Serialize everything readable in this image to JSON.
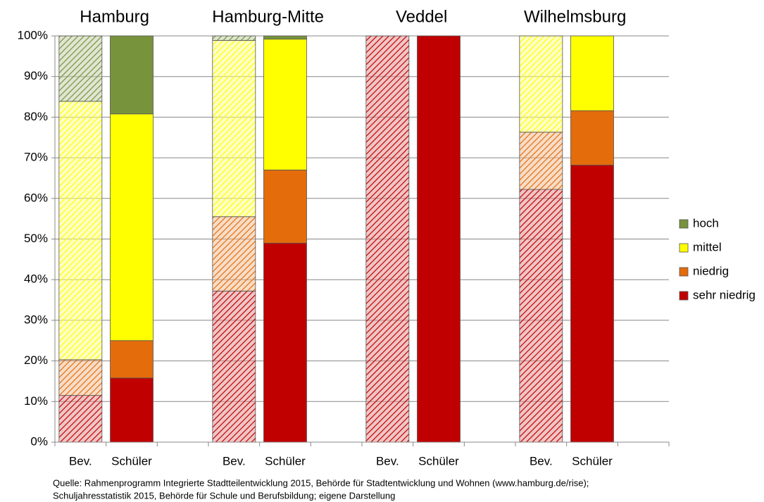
{
  "chart_data": {
    "type": "stacked-bar",
    "groups": [
      "Hamburg",
      "Hamburg-Mitte",
      "Veddel",
      "Wilhelmsburg"
    ],
    "categories": [
      "Bev.",
      "Schüler",
      "Bev.",
      "Schüler",
      "Bev.",
      "Schüler",
      "Bev.",
      "Schüler"
    ],
    "hatched": [
      true,
      false,
      true,
      false,
      true,
      false,
      true,
      false
    ],
    "series": [
      {
        "name": "sehr niedrig",
        "color": "#c00000",
        "values": [
          11.5,
          15.8,
          37.2,
          49.0,
          100,
          100,
          62.2,
          68.2
        ]
      },
      {
        "name": "niedrig",
        "color": "#e46c0a",
        "values": [
          8.8,
          9.2,
          18.3,
          18.0,
          0,
          0,
          14.1,
          13.4
        ]
      },
      {
        "name": "mittel",
        "color": "#ffff00",
        "values": [
          63.6,
          55.8,
          43.4,
          32.2,
          0,
          0,
          23.7,
          18.4
        ]
      },
      {
        "name": "hoch",
        "color": "#77933c",
        "values": [
          16.1,
          19.2,
          1.1,
          0.8,
          0,
          0,
          0,
          0
        ]
      }
    ],
    "ylim": [
      0,
      100
    ],
    "yticks": [
      {
        "value": 0,
        "label": "0%"
      },
      {
        "value": 10,
        "label": "10%"
      },
      {
        "value": 20,
        "label": "20%"
      },
      {
        "value": 30,
        "label": "30%"
      },
      {
        "value": 40,
        "label": "40%"
      },
      {
        "value": 50,
        "label": "50%"
      },
      {
        "value": 60,
        "label": "60%"
      },
      {
        "value": 70,
        "label": "70%"
      },
      {
        "value": 80,
        "label": "80%"
      },
      {
        "value": 90,
        "label": "90%"
      },
      {
        "value": 100,
        "label": "100%"
      }
    ],
    "grid": true,
    "legend": "right",
    "source": [
      "Quelle: Rahmenprogramm Integrierte Stadtteilentwicklung 2015, Behörde für Stadtentwicklung und Wohnen (www.hamburg.de/rise);",
      "Schuljahresstatistik 2015, Behörde für Schule und Berufsbildung; eigene Darstellung"
    ]
  }
}
